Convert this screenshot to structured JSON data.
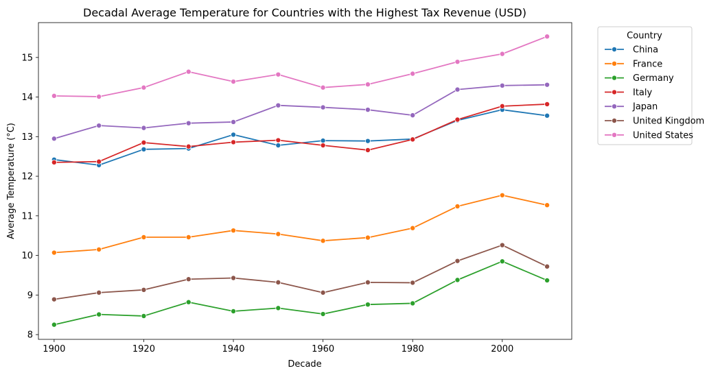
{
  "chart_data": {
    "type": "line",
    "title": "Decadal Average Temperature for Countries with the Highest Tax Revenue (USD)",
    "xlabel": "Decade",
    "ylabel": "Average Temperature (°C)",
    "x": [
      1900,
      1910,
      1920,
      1930,
      1940,
      1950,
      1960,
      1970,
      1980,
      1990,
      2000,
      2010
    ],
    "xlim": [
      1896.5,
      2015.5
    ],
    "ylim": [
      7.88,
      15.88
    ],
    "xticks": [
      1900,
      1920,
      1940,
      1960,
      1980,
      2000
    ],
    "yticks": [
      8,
      9,
      10,
      11,
      12,
      13,
      14,
      15
    ],
    "grid": false,
    "legend": {
      "title": "Country",
      "placement": "outside-upper-right"
    },
    "series": [
      {
        "name": "China",
        "color": "#1f77b4",
        "values": [
          12.42,
          12.28,
          12.68,
          12.7,
          13.05,
          12.78,
          12.9,
          12.89,
          12.94,
          13.41,
          13.68,
          13.53
        ]
      },
      {
        "name": "France",
        "color": "#ff7f0e",
        "values": [
          10.07,
          10.15,
          10.46,
          10.46,
          10.63,
          10.54,
          10.37,
          10.45,
          10.69,
          11.24,
          11.52,
          11.27
        ]
      },
      {
        "name": "Germany",
        "color": "#2ca02c",
        "values": [
          8.25,
          8.51,
          8.47,
          8.82,
          8.59,
          8.67,
          8.52,
          8.76,
          8.79,
          9.38,
          9.85,
          9.37
        ]
      },
      {
        "name": "Italy",
        "color": "#d62728",
        "values": [
          12.35,
          12.37,
          12.85,
          12.75,
          12.86,
          12.91,
          12.78,
          12.66,
          12.93,
          13.43,
          13.77,
          13.82
        ]
      },
      {
        "name": "Japan",
        "color": "#9467bd",
        "values": [
          12.95,
          13.28,
          13.22,
          13.34,
          13.37,
          13.79,
          13.74,
          13.68,
          13.54,
          14.19,
          14.29,
          14.31
        ]
      },
      {
        "name": "United Kingdom",
        "color": "#8c564b",
        "values": [
          8.89,
          9.06,
          9.13,
          9.4,
          9.43,
          9.32,
          9.06,
          9.32,
          9.31,
          9.86,
          10.26,
          9.72
        ]
      },
      {
        "name": "United States",
        "color": "#e377c2",
        "values": [
          14.03,
          14.01,
          14.24,
          14.64,
          14.39,
          14.57,
          14.24,
          14.32,
          14.59,
          14.89,
          15.09,
          15.53
        ]
      }
    ]
  }
}
